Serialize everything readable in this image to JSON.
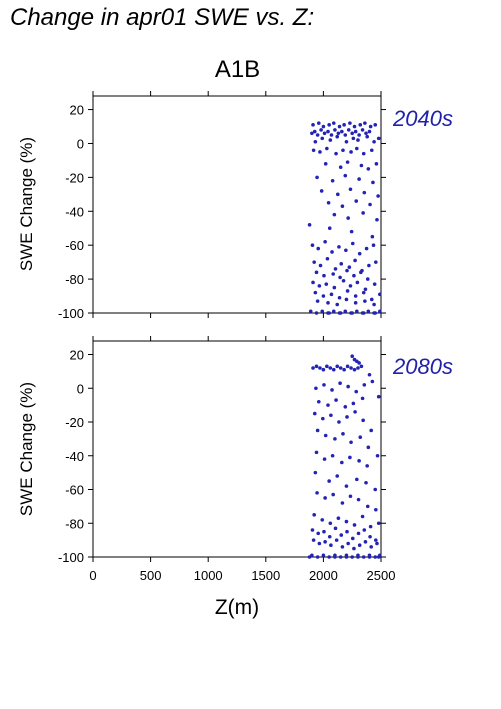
{
  "figure": {
    "title": "Change in apr01 SWE vs. Z:",
    "subtitle": "A1B",
    "xlabel": "Z(m)",
    "ylabel": "SWE Change (%)"
  },
  "colors": {
    "points": "#2323b5",
    "label": "#2020aa",
    "axis": "#000000"
  },
  "chart_data": [
    {
      "type": "scatter",
      "panel_label": "2040s",
      "xlabel": "Z(m)",
      "ylabel": "SWE Change (%)",
      "xlim": [
        0,
        2500
      ],
      "ylim": [
        -100,
        28
      ],
      "x_ticks": [
        "0",
        "500",
        "1000",
        "1500",
        "2000",
        "2500"
      ],
      "y_ticks": [
        "20",
        "0",
        "-20",
        "-40",
        "-60",
        "-80",
        "-100"
      ],
      "y_tick_values": [
        20,
        0,
        -20,
        -40,
        -60,
        -80,
        -100
      ],
      "x_tick_values": [
        0,
        500,
        1000,
        1500,
        2000,
        2500
      ],
      "series": [
        {
          "x": [
            1900,
            1925,
            1950,
            1980,
            2010,
            2040,
            2070,
            2100,
            2130,
            2160,
            2190,
            2220,
            2250,
            2280,
            2310,
            2340,
            2370,
            2400,
            1910,
            1960,
            2000,
            2050,
            2090,
            2140,
            2180,
            2230,
            2270,
            2320,
            2360,
            2410,
            2450,
            1930,
            1990,
            2060,
            2120,
            2200,
            2260,
            2300,
            2380,
            2440,
            2480,
            1915,
            1970,
            2030,
            2110,
            2170,
            2240,
            2290,
            2350,
            2420,
            2020,
            2150,
            2210,
            2330,
            2390,
            2460,
            1945,
            2080,
            2190,
            2310,
            2430,
            1985,
            2125,
            2235,
            2355,
            2475,
            2045,
            2165,
            2285,
            2405,
            2095,
            2215,
            2345,
            2465,
            1880,
            2055,
            2245,
            2425,
            1905,
            1955,
            2015,
            2075,
            2135,
            2195,
            2255,
            2315,
            2375,
            2435,
            1920,
            1975,
            2035,
            2105,
            2155,
            2225,
            2275,
            2335,
            2395,
            2455,
            1940,
            2005,
            2085,
            2145,
            2205,
            2265,
            2325,
            2385,
            1910,
            1965,
            2025,
            2095,
            2175,
            2235,
            2295,
            2365,
            2445,
            1930,
            2000,
            2070,
            2140,
            2210,
            2280,
            2350,
            2420,
            2490,
            1950,
            2040,
            2120,
            2200,
            2280,
            2360,
            2440,
            1890,
            1940,
            1990,
            2040,
            2090,
            2140,
            2190,
            2240,
            2290,
            2340,
            2390,
            2440,
            2490,
            2050,
            2150,
            2250,
            2350,
            2450
          ],
          "y": [
            6,
            7,
            5,
            8,
            6,
            7,
            5,
            8,
            6,
            7,
            5,
            8,
            6,
            7,
            5,
            8,
            6,
            7,
            11,
            12,
            10,
            11,
            12,
            10,
            11,
            12,
            10,
            11,
            12,
            10,
            11,
            1,
            3,
            2,
            4,
            1,
            3,
            2,
            4,
            1,
            3,
            -4,
            -5,
            -3,
            -6,
            -4,
            -5,
            -3,
            -6,
            -4,
            -12,
            -14,
            -11,
            -13,
            -15,
            -12,
            -20,
            -22,
            -19,
            -21,
            -23,
            -28,
            -30,
            -27,
            -29,
            -31,
            -35,
            -37,
            -34,
            -36,
            -42,
            -44,
            -41,
            -45,
            -48,
            -50,
            -52,
            -55,
            -60,
            -62,
            -58,
            -64,
            -61,
            -63,
            -59,
            -65,
            -62,
            -60,
            -70,
            -72,
            -68,
            -74,
            -71,
            -73,
            -69,
            -75,
            -72,
            -70,
            -76,
            -78,
            -77,
            -79,
            -75,
            -78,
            -76,
            -80,
            -82,
            -84,
            -83,
            -85,
            -81,
            -84,
            -82,
            -86,
            -83,
            -88,
            -90,
            -89,
            -91,
            -87,
            -90,
            -88,
            -92,
            -89,
            -93,
            -94,
            -95,
            -92,
            -94,
            -93,
            -95,
            -99,
            -100,
            -99,
            -100,
            -99,
            -100,
            -99,
            -100,
            -99,
            -100,
            -99,
            -100,
            -99,
            -100,
            -100,
            -100,
            -100,
            -100
          ]
        }
      ]
    },
    {
      "type": "scatter",
      "panel_label": "2080s",
      "xlabel": "Z(m)",
      "ylabel": "SWE Change (%)",
      "xlim": [
        0,
        2500
      ],
      "ylim": [
        -100,
        28
      ],
      "x_ticks": [
        "0",
        "500",
        "1000",
        "1500",
        "2000",
        "2500"
      ],
      "y_ticks": [
        "20",
        "0",
        "-20",
        "-40",
        "-60",
        "-80",
        "-100"
      ],
      "y_tick_values": [
        20,
        0,
        -20,
        -40,
        -60,
        -80,
        -100
      ],
      "x_tick_values": [
        0,
        500,
        1000,
        1500,
        2000,
        2500
      ],
      "series": [
        {
          "x": [
            1910,
            1940,
            1970,
            2000,
            2030,
            2060,
            2090,
            2120,
            2150,
            2180,
            2210,
            2240,
            2270,
            2300,
            2330,
            2250,
            2270,
            2290,
            2310,
            2400,
            1935,
            2005,
            2075,
            2145,
            2215,
            2285,
            2355,
            2425,
            1960,
            2040,
            2110,
            2190,
            2260,
            2340,
            2480,
            1925,
            1995,
            2065,
            2135,
            2205,
            2275,
            2345,
            2415,
            1950,
            2020,
            2100,
            2170,
            2240,
            2320,
            2390,
            2470,
            1940,
            2010,
            2080,
            2160,
            2230,
            2310,
            2380,
            1930,
            2050,
            2120,
            2200,
            2290,
            2370,
            2450,
            1945,
            2015,
            2085,
            2165,
            2235,
            2305,
            2385,
            2455,
            1920,
            1990,
            2060,
            2130,
            2200,
            2270,
            2340,
            2410,
            2480,
            1905,
            1955,
            2005,
            2055,
            2105,
            2155,
            2205,
            2255,
            2305,
            2355,
            2405,
            2455,
            1915,
            1965,
            2015,
            2065,
            2115,
            2165,
            2215,
            2265,
            2315,
            2365,
            2415,
            2465,
            1900,
            1950,
            2000,
            2050,
            2100,
            2150,
            2200,
            2250,
            2300,
            2350,
            2400,
            2450,
            2490,
            1880,
            2100,
            2200,
            2300,
            2400,
            2480
          ],
          "y": [
            12,
            13,
            12,
            11,
            13,
            12,
            11,
            13,
            12,
            11,
            13,
            12,
            11,
            12,
            13,
            19,
            17,
            16,
            15,
            8,
            0,
            2,
            -1,
            3,
            1,
            -2,
            2,
            4,
            -8,
            -10,
            -7,
            -11,
            -9,
            -6,
            -5,
            -15,
            -18,
            -16,
            -20,
            -17,
            -14,
            -19,
            -25,
            -25,
            -28,
            -30,
            -27,
            -32,
            -29,
            -35,
            -40,
            -38,
            -42,
            -40,
            -44,
            -41,
            -43,
            -46,
            -50,
            -55,
            -52,
            -58,
            -54,
            -56,
            -60,
            -62,
            -65,
            -63,
            -68,
            -64,
            -66,
            -70,
            -72,
            -75,
            -78,
            -80,
            -77,
            -79,
            -81,
            -76,
            -82,
            -80,
            -84,
            -86,
            -85,
            -88,
            -83,
            -87,
            -85,
            -89,
            -86,
            -84,
            -88,
            -90,
            -90,
            -92,
            -91,
            -93,
            -90,
            -94,
            -92,
            -95,
            -93,
            -91,
            -94,
            -92,
            -99,
            -100,
            -99,
            -100,
            -99,
            -100,
            -99,
            -100,
            -99,
            -100,
            -99,
            -100,
            -99,
            -100,
            -100,
            -100,
            -100,
            -100,
            -100
          ]
        }
      ]
    }
  ]
}
